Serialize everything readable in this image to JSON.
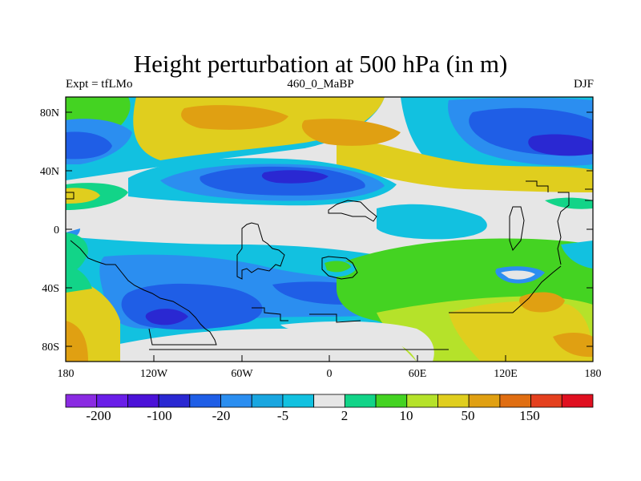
{
  "title": "Height perturbation at 500 hPa (in m)",
  "left_label": "Expt = tfLMo",
  "center_label": "460_0_MaBP",
  "right_label": "DJF",
  "map": {
    "x_ticks": [
      "180",
      "120W",
      "60W",
      "0",
      "60E",
      "120E",
      "180"
    ],
    "y_ticks": [
      "80N",
      "40N",
      "0",
      "40S",
      "80S"
    ]
  },
  "colorbar": {
    "colors": [
      "#8a2be2",
      "#6a1ee8",
      "#4b12d8",
      "#2a28d2",
      "#1f5ee6",
      "#2b8ef0",
      "#19a6e0",
      "#12c1e0",
      "#e6e6e6",
      "#12d488",
      "#44d322",
      "#b5e22a",
      "#e0ce1e",
      "#e0a012",
      "#e06e12",
      "#e4401e",
      "#e01020"
    ],
    "labels": [
      "-200",
      "-100",
      "-20",
      "-5",
      "2",
      "10",
      "50",
      "150"
    ]
  },
  "field_colors": {
    "background": "#e6e6e6",
    "cyan": "#12c1e0",
    "sky": "#2b8ef0",
    "mid_blue": "#1f5ee6",
    "deep_blue": "#2a28d2",
    "green": "#12d488",
    "lime": "#b5e22a",
    "yellow": "#e0ce1e",
    "orange": "#e0a012"
  }
}
